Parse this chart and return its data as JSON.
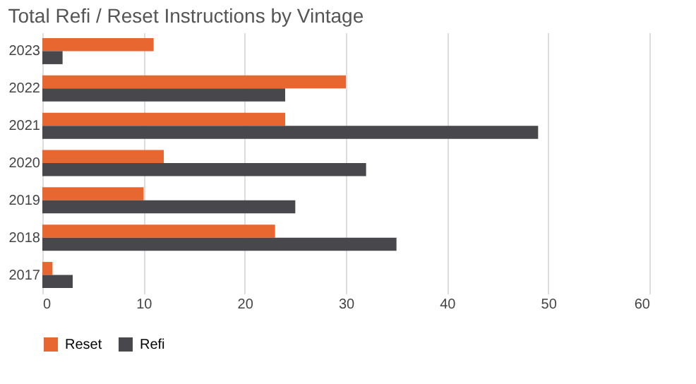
{
  "chart_data": {
    "type": "bar",
    "orientation": "horizontal",
    "title": "Total Refi / Reset Instructions by Vintage",
    "categories": [
      "2023",
      "2022",
      "2021",
      "2020",
      "2019",
      "2018",
      "2017"
    ],
    "series": [
      {
        "name": "Reset",
        "color": "#e8662f",
        "values": [
          11,
          30,
          24,
          12,
          10,
          23,
          1
        ]
      },
      {
        "name": "Refi",
        "color": "#48484c",
        "values": [
          2,
          24,
          49,
          32,
          25,
          35,
          3
        ]
      }
    ],
    "xlim": [
      0,
      60
    ],
    "xticks": [
      0,
      10,
      20,
      30,
      40,
      50,
      60
    ],
    "grid": "x",
    "legend": "bottom"
  }
}
